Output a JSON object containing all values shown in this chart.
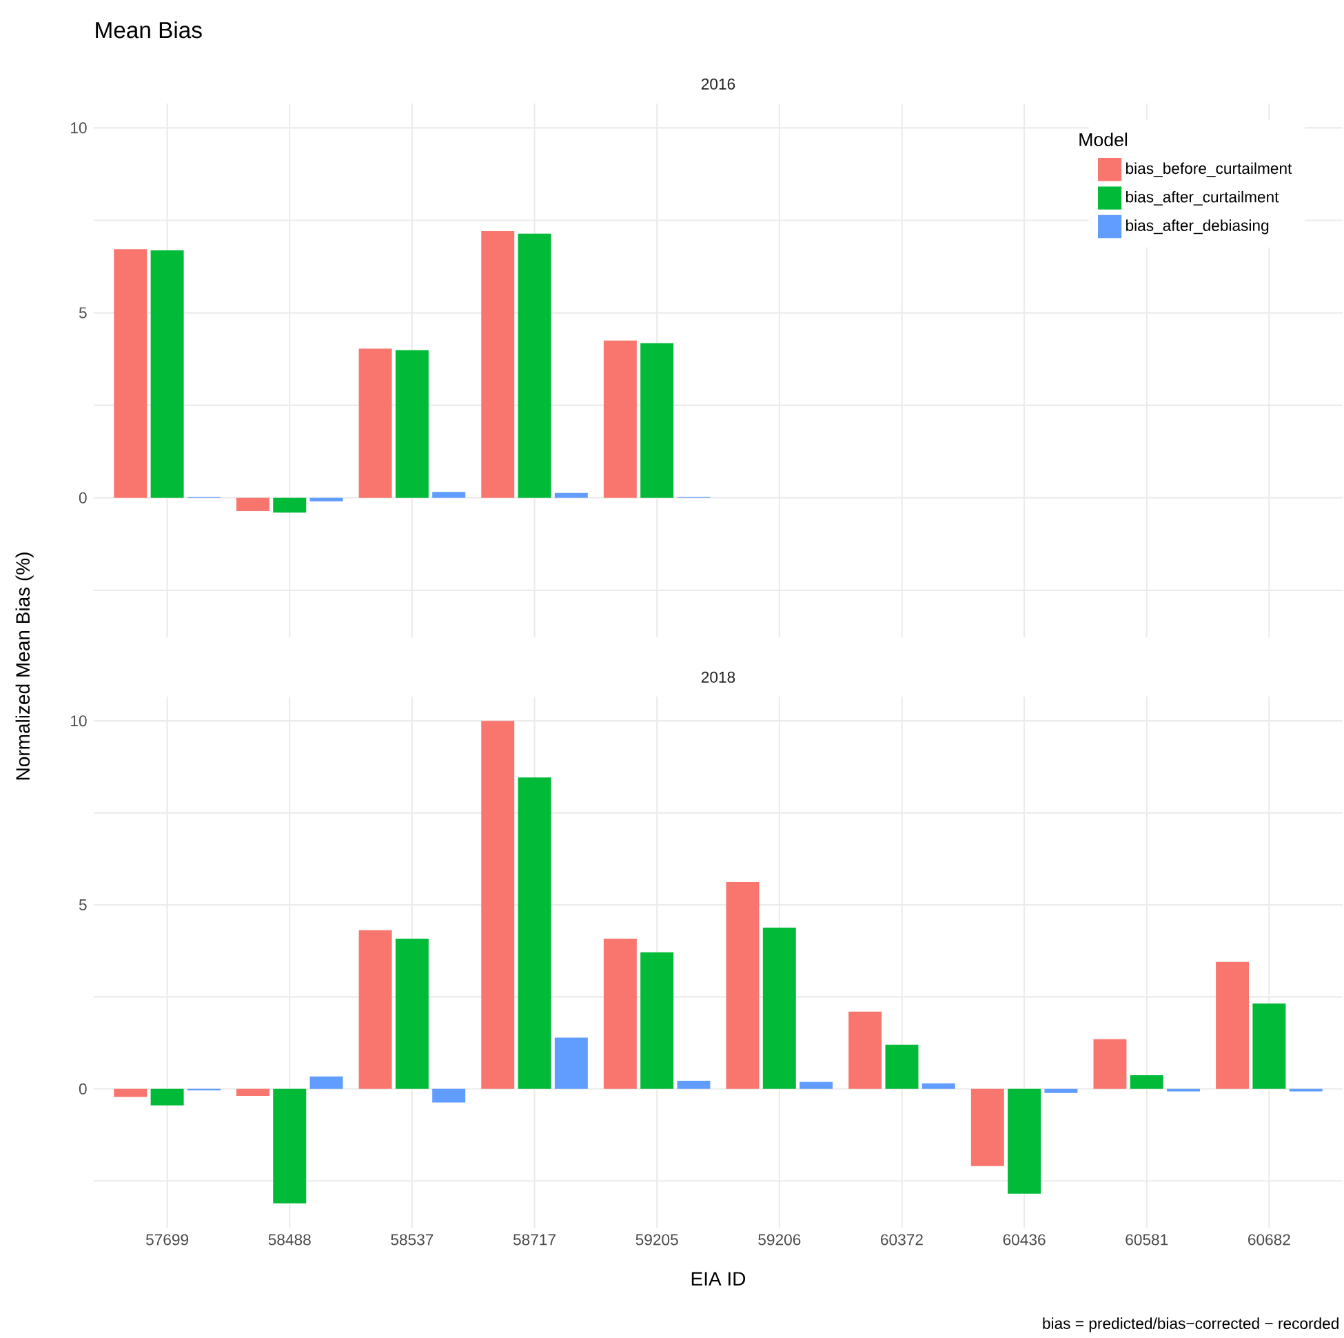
{
  "chart_data": [
    {
      "type": "bar",
      "title": "Mean Bias",
      "subtitle": "2016",
      "ylabel": "Normalized Mean Bias (%)",
      "legend_title": "Model",
      "legend": "top right",
      "grid": true,
      "tick_labels": "y",
      "categories": [
        "57699",
        "58488",
        "58537",
        "58717",
        "59205",
        "59206",
        "60372",
        "60436",
        "60581",
        "60682"
      ],
      "ylim": [
        -3.77,
        10.66
      ],
      "yticks": [
        {
          "value": -2.5,
          "label": null
        },
        0,
        {
          "value": 2.5,
          "label": null
        },
        5,
        {
          "value": 7.5,
          "label": null
        },
        10
      ],
      "series": [
        {
          "name": "bias_before_curtailment",
          "color": "#f8766d",
          "values": [
            6.72,
            -0.36,
            4.03,
            7.21,
            4.25,
            null,
            null,
            null,
            null,
            null
          ]
        },
        {
          "name": "bias_after_curtailment",
          "color": "#00ba38",
          "values": [
            6.69,
            -0.4,
            3.99,
            7.14,
            4.18,
            null,
            null,
            null,
            null,
            null
          ]
        },
        {
          "name": "bias_after_debiasing",
          "color": "#619cff",
          "values": [
            0.02,
            -0.1,
            0.16,
            0.13,
            0.02,
            null,
            null,
            null,
            null,
            null
          ]
        }
      ]
    },
    {
      "type": "bar",
      "subtitle": "2018",
      "xlabel": "EIA ID",
      "annotations": [
        "bias = predicted/bias−corrected − recorded"
      ],
      "grid": true,
      "categories": [
        "57699",
        "58488",
        "58537",
        "58717",
        "59205",
        "59206",
        "60372",
        "60436",
        "60581",
        "60682"
      ],
      "ylim": [
        -3.77,
        10.66
      ],
      "yticks": [
        {
          "value": -2.5,
          "label": null
        },
        0,
        {
          "value": 2.5,
          "label": null
        },
        5,
        {
          "value": 7.5,
          "label": null
        },
        10
      ],
      "series": [
        {
          "color": "#f8766d",
          "values": [
            -0.22,
            -0.19,
            4.31,
            10.0,
            4.08,
            5.62,
            2.1,
            -2.1,
            1.35,
            3.45
          ]
        },
        {
          "color": "#00ba38",
          "values": [
            -0.45,
            -3.11,
            4.08,
            8.46,
            3.71,
            4.38,
            1.2,
            -2.85,
            0.37,
            2.32
          ]
        },
        {
          "color": "#619cff",
          "values": [
            -0.04,
            0.34,
            -0.37,
            1.39,
            0.22,
            0.19,
            0.15,
            -0.11,
            -0.07,
            -0.07
          ]
        }
      ]
    }
  ]
}
